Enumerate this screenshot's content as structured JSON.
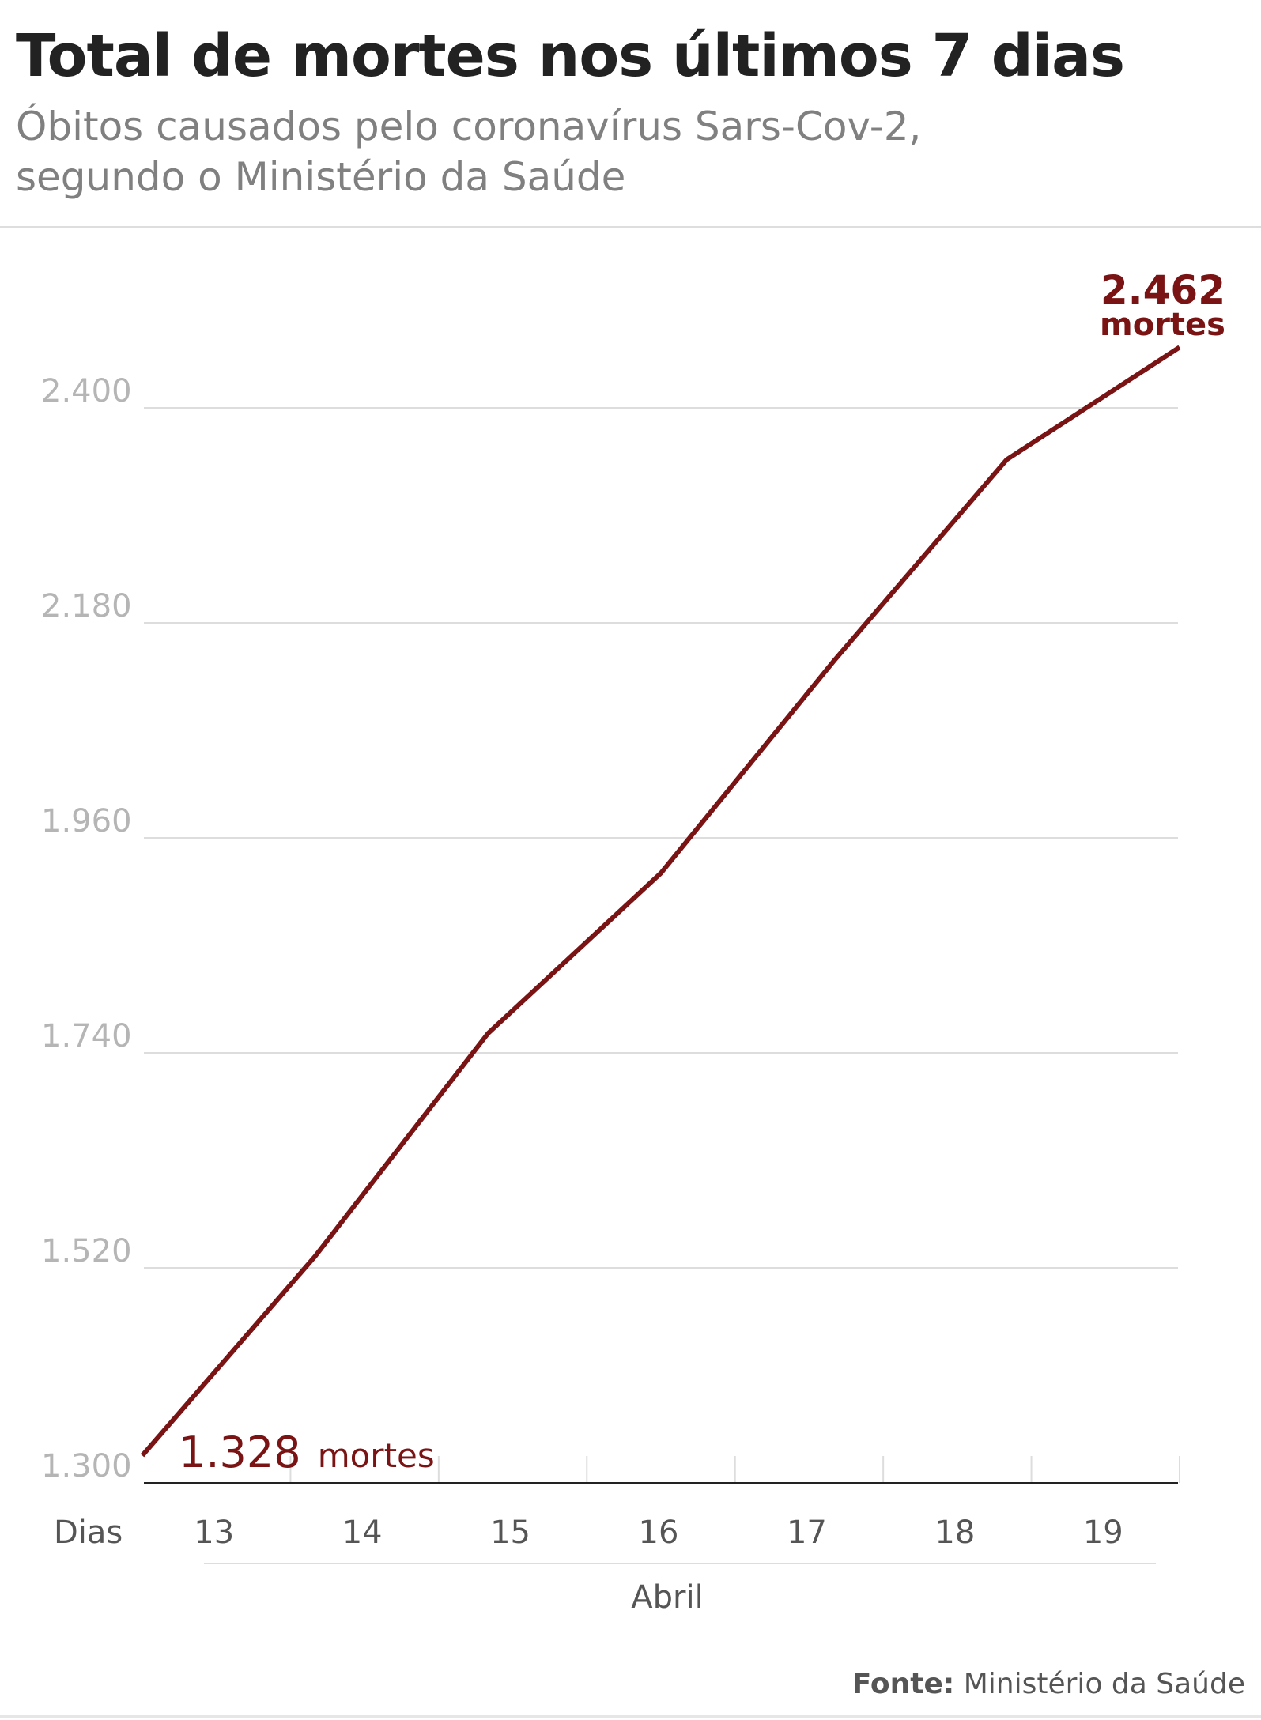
{
  "header": {
    "title": "Total de mortes nos últimos 7 dias",
    "subtitle_lines": [
      "Óbitos causados pelo coronavírus Sars-Cov-2,",
      "segundo o Ministério da Saúde"
    ]
  },
  "chart_data": {
    "type": "line",
    "x": [
      13,
      14,
      15,
      16,
      17,
      18,
      19
    ],
    "xtick_labels": [
      "13",
      "14",
      "15",
      "16",
      "17",
      "18",
      "19"
    ],
    "x_row_label": "Dias",
    "xlabel": "Abril",
    "ylabel": "",
    "ylim": [
      1300,
      2462
    ],
    "yticks": [
      1300,
      1520,
      1740,
      1960,
      2180,
      2400
    ],
    "ytick_labels": [
      "1.300",
      "1.520",
      "1.740",
      "1.960",
      "2.180",
      "2.400"
    ],
    "grid": true,
    "series": [
      {
        "values": [
          1328,
          1532,
          1760,
          1924,
          2141,
          2347,
          2462
        ]
      }
    ],
    "annotations": {
      "start": {
        "value": "1.328",
        "unit": "mortes"
      },
      "end": {
        "value": "2.462",
        "unit": "mortes"
      }
    },
    "colors": {
      "line": "#7a1414",
      "grid": "#dddddd",
      "axis": "#222222"
    }
  },
  "source": {
    "label": "Fonte:",
    "text": "Ministério da Saúde"
  }
}
